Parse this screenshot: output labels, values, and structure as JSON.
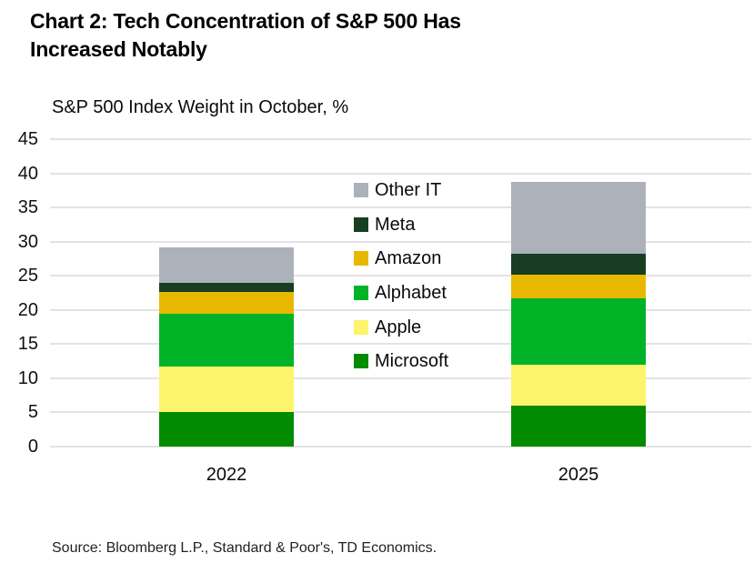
{
  "header": {
    "title_line1": "Chart 2: Tech Concentration of S&P 500 Has",
    "title_line2": "Increased Notably"
  },
  "source": "Source: Bloomberg L.P., Standard & Poor's, TD Economics.",
  "chart_data": {
    "type": "bar",
    "stacked": true,
    "title": "S&P 500 Index Weight in October, %",
    "categories": [
      "2022",
      "2025"
    ],
    "series": [
      {
        "name": "Microsoft",
        "color": "#008B00",
        "values": [
          5.1,
          6.0
        ]
      },
      {
        "name": "Apple",
        "color": "#FCF46A",
        "values": [
          6.6,
          6.0
        ]
      },
      {
        "name": "Alphabet",
        "color": "#00B327",
        "values": [
          7.7,
          9.7
        ]
      },
      {
        "name": "Amazon",
        "color": "#E8B800",
        "values": [
          3.3,
          3.5
        ]
      },
      {
        "name": "Meta",
        "color": "#173D23",
        "values": [
          1.3,
          3.0
        ]
      },
      {
        "name": "Other IT",
        "color": "#ACB1BA",
        "values": [
          5.2,
          10.5
        ]
      }
    ],
    "totals": [
      29.2,
      38.7
    ],
    "ylim": [
      0,
      45
    ],
    "yticks": [
      0,
      5,
      10,
      15,
      20,
      25,
      30,
      35,
      40,
      45
    ],
    "xlabel": "",
    "ylabel": "",
    "grid": "horizontal",
    "legend_order": [
      "Other IT",
      "Meta",
      "Amazon",
      "Alphabet",
      "Apple",
      "Microsoft"
    ],
    "legend_position": "center-overlay"
  },
  "colors": {
    "gridline": "#E3E3E3",
    "title_text": "#000000",
    "source_text": "#222222"
  }
}
